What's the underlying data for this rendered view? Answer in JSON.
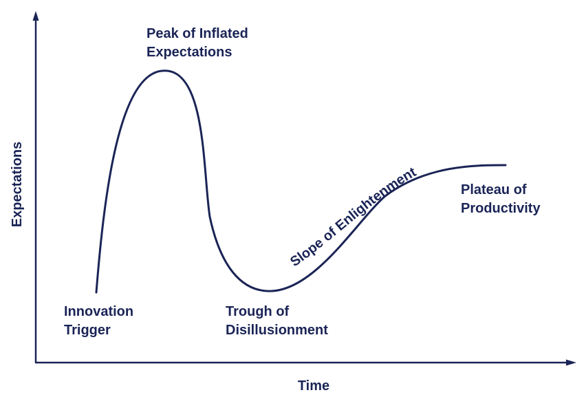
{
  "colors": {
    "ink": "#1a2456",
    "background": "#ffffff"
  },
  "axes": {
    "y_label": "Expectations",
    "x_label": "Time"
  },
  "phases": {
    "innovation_trigger": {
      "line1": "Innovation",
      "line2": "Trigger"
    },
    "peak": {
      "line1": "Peak of Inflated",
      "line2": "Expectations"
    },
    "trough": {
      "line1": "Trough of",
      "line2": "Disillusionment"
    },
    "slope": {
      "label": "Slope of Enlightenment"
    },
    "plateau": {
      "line1": "Plateau of",
      "line2": "Productivity"
    }
  }
}
